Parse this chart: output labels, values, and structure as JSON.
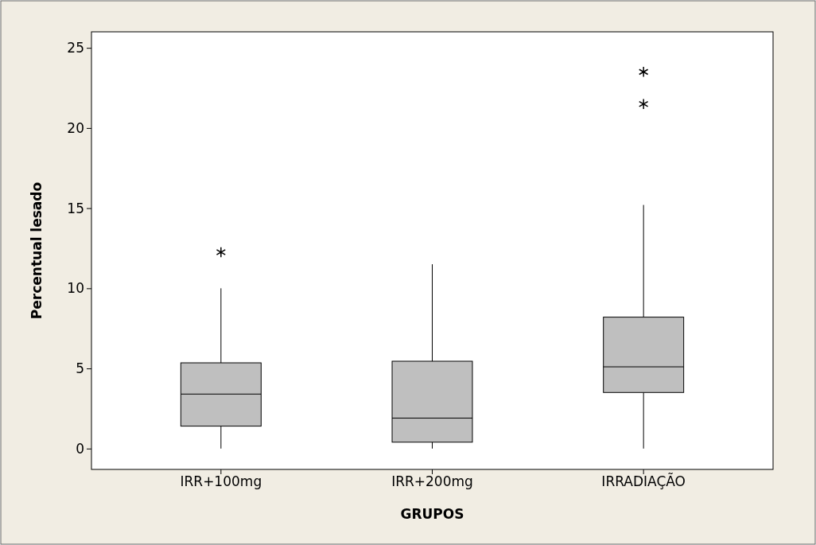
{
  "chart_data": {
    "type": "box",
    "xlabel": "GRUPOS",
    "ylabel": "Percentual lesado",
    "categories": [
      "IRR+100mg",
      "IRR+200mg",
      "IRRADIAÇÃO"
    ],
    "boxes": [
      {
        "low": 0,
        "q1": 1.4,
        "median": 3.4,
        "q3": 5.35,
        "high": 10,
        "outliers": [
          12.25
        ]
      },
      {
        "low": 0,
        "q1": 0.4,
        "median": 1.9,
        "q3": 5.45,
        "high": 11.5
      },
      {
        "low": 0,
        "q1": 3.5,
        "median": 5.1,
        "q3": 8.2,
        "high": 15.2,
        "outliers": [
          21.5,
          23.5
        ]
      }
    ],
    "color": "#bfbfbf",
    "ylim": [
      -1.3,
      26
    ],
    "yticks": [
      0,
      5,
      10,
      15,
      20,
      25
    ],
    "grid": false,
    "marker": "cross"
  }
}
